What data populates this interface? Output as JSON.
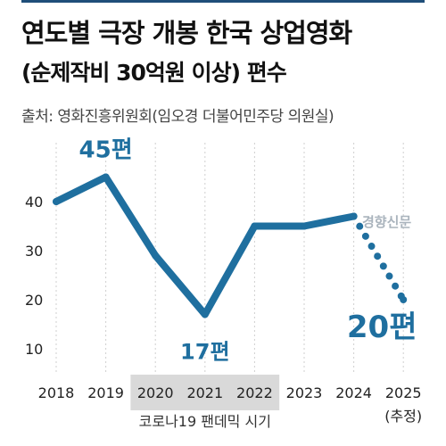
{
  "header": {
    "title": "연도별 극장 개봉 한국 상업영화",
    "subtitle": "(순제작비 30억원 이상) 편수",
    "source": "출처: 영화진흥위원회(임오경 더불어민주당 의원실)"
  },
  "watermark": "경향신문",
  "colors": {
    "line": "#1f6f9f",
    "shade": "#d9d9d9"
  },
  "chart_data": {
    "type": "line",
    "categories": [
      "2018",
      "2019",
      "2020",
      "2021",
      "2022",
      "2023",
      "2024",
      "2025"
    ],
    "category_notes": {
      "2025": "(추정)"
    },
    "values": [
      40,
      45,
      29,
      17,
      35,
      35,
      37,
      20
    ],
    "estimated_from_index": 6,
    "ylim": [
      10,
      45
    ],
    "yticks": [
      10,
      20,
      30,
      40
    ],
    "grid": false,
    "annotations": [
      {
        "category": "2019",
        "text": "45편"
      },
      {
        "category": "2021",
        "text": "17편"
      },
      {
        "category": "2025",
        "text": "20편"
      }
    ],
    "highlight_band": {
      "from": "2020",
      "to": "2022",
      "label": "코로나19 팬데믹 시기"
    }
  }
}
